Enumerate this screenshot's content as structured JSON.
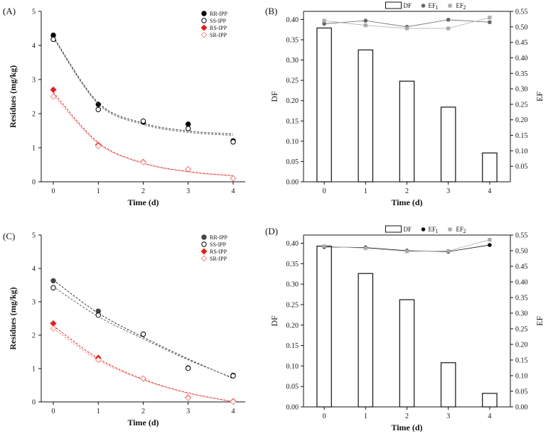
{
  "chart_data": [
    {
      "panel": "(A)",
      "type": "scatter",
      "xlabel": "Time (d)",
      "ylabel": "Residues (mg/kg)",
      "xlim": [
        0,
        4
      ],
      "ylim": [
        0,
        5
      ],
      "xticks": [
        "0",
        "1",
        "2",
        "3",
        "4"
      ],
      "yticks": [
        "0",
        "1",
        "2",
        "3",
        "4",
        "5"
      ],
      "legend_position": "top-right",
      "series": [
        {
          "name": "RR-IPP",
          "color": "#000000",
          "marker": "filled-circle",
          "x": [
            0,
            1,
            2,
            3,
            4
          ],
          "y": [
            4.3,
            2.27,
            1.75,
            1.69,
            1.2
          ],
          "fit": [
            4.26,
            2.32,
            1.72,
            1.49,
            1.4
          ],
          "fit_color": "#333333"
        },
        {
          "name": "SS-IPP",
          "color": "#000000",
          "marker": "open-circle",
          "x": [
            0,
            1,
            2,
            3,
            4
          ],
          "y": [
            4.18,
            2.12,
            1.78,
            1.56,
            1.17
          ],
          "fit": [
            4.22,
            2.28,
            1.68,
            1.45,
            1.36
          ],
          "fit_color": "#666666"
        },
        {
          "name": "RS-IPP",
          "color": "#e11d1d",
          "marker": "filled-diamond",
          "x": [
            0,
            1,
            2,
            3,
            4
          ],
          "y": [
            2.7,
            1.08,
            0.58,
            0.37,
            0.1
          ],
          "fit": [
            2.62,
            1.15,
            0.55,
            0.3,
            0.18
          ],
          "fit_color": "#e11d1d"
        },
        {
          "name": "SR-IPP",
          "color": "#f28a8a",
          "marker": "open-diamond",
          "x": [
            0,
            1,
            2,
            3,
            4
          ],
          "y": [
            2.5,
            1.05,
            0.57,
            0.37,
            0.1
          ],
          "fit": [
            2.55,
            1.12,
            0.54,
            0.29,
            0.17
          ],
          "fit_color": "#f28a8a"
        }
      ]
    },
    {
      "panel": "(B)",
      "type": "bar",
      "xlabel": "Time (d)",
      "ylabel": "DF",
      "y2label": "EF",
      "categories": [
        "0",
        "1",
        "2",
        "3",
        "4"
      ],
      "ylim": [
        0,
        0.42
      ],
      "y2lim": [
        0,
        0.55
      ],
      "yticks": [
        "0.00",
        "0.05",
        "0.10",
        "0.15",
        "0.20",
        "0.25",
        "0.30",
        "0.35",
        "0.40"
      ],
      "y2ticks": [
        "0.05",
        "0.10",
        "0.15",
        "0.20",
        "0.25",
        "0.30",
        "0.35",
        "0.40",
        "0.45",
        "0.50",
        "0.55"
      ],
      "legend": [
        "DF",
        "EF",
        "EF"
      ],
      "legend_subscripts": [
        "",
        "1",
        "2"
      ],
      "legend_position": "top",
      "bars": [
        0.379,
        0.325,
        0.248,
        0.184,
        0.071
      ],
      "series": [
        {
          "name": "EF1",
          "color": "#666666",
          "values": [
            0.51,
            0.52,
            0.5,
            0.523,
            0.515
          ]
        },
        {
          "name": "EF2",
          "color": "#aaaaaa",
          "values": [
            0.52,
            0.505,
            0.495,
            0.495,
            0.53
          ]
        }
      ]
    },
    {
      "panel": "(C)",
      "type": "scatter",
      "xlabel": "Time (d)",
      "ylabel": "Residues (mg/kg)",
      "xlim": [
        0,
        4
      ],
      "ylim": [
        0,
        5
      ],
      "xticks": [
        "0",
        "1",
        "2",
        "3",
        "4"
      ],
      "yticks": [
        "0",
        "1",
        "2",
        "3",
        "4",
        "5"
      ],
      "legend_position": "top-right",
      "series": [
        {
          "name": "RR-IPP",
          "color": "#444444",
          "marker": "filled-circle",
          "x": [
            0,
            1,
            2,
            3,
            4
          ],
          "y": [
            3.63,
            2.72,
            2.03,
            1.02,
            0.8
          ],
          "fit": [
            3.65,
            2.66,
            1.94,
            1.29,
            0.7
          ],
          "fit_color": "#333333"
        },
        {
          "name": "SS-IPP",
          "color": "#000000",
          "marker": "open-circle",
          "x": [
            0,
            1,
            2,
            3,
            4
          ],
          "y": [
            3.42,
            2.6,
            2.03,
            1.01,
            0.78
          ],
          "fit": [
            3.45,
            2.56,
            1.89,
            1.26,
            0.72
          ],
          "fit_color": "#666666"
        },
        {
          "name": "RS-IPP",
          "color": "#e11d1d",
          "marker": "filled-diamond",
          "x": [
            0,
            1,
            2,
            3,
            4
          ],
          "y": [
            2.35,
            1.32,
            0.7,
            0.13,
            0.02
          ],
          "fit": [
            2.28,
            1.3,
            0.68,
            0.27,
            0.01
          ],
          "fit_color": "#e11d1d"
        },
        {
          "name": "SR-IPP",
          "color": "#f28a8a",
          "marker": "open-diamond",
          "x": [
            0,
            1,
            2,
            3,
            4
          ],
          "y": [
            2.2,
            1.26,
            0.7,
            0.12,
            0.01
          ],
          "fit": [
            2.2,
            1.25,
            0.66,
            0.26,
            0.0
          ],
          "fit_color": "#f28a8a"
        }
      ]
    },
    {
      "panel": "(D)",
      "type": "bar",
      "xlabel": "Time (d)",
      "ylabel": "DF",
      "y2label": "EF",
      "categories": [
        "0",
        "1",
        "2",
        "3",
        "4"
      ],
      "ylim": [
        0,
        0.42
      ],
      "y2lim": [
        0,
        0.55
      ],
      "yticks": [
        "0.00",
        "0.05",
        "0.10",
        "0.15",
        "0.20",
        "0.25",
        "0.30",
        "0.35",
        "0.40"
      ],
      "y2ticks": [
        "0.00",
        "0.05",
        "0.10",
        "0.15",
        "0.20",
        "0.25",
        "0.30",
        "0.35",
        "0.40",
        "0.45",
        "0.50",
        "0.55"
      ],
      "legend": [
        "DF",
        "EF",
        "EF"
      ],
      "legend_subscripts": [
        "",
        "1",
        "2"
      ],
      "legend_position": "top",
      "bars": [
        0.393,
        0.326,
        0.262,
        0.108,
        0.033
      ],
      "series": [
        {
          "name": "EF1",
          "color": "#111111",
          "values": [
            0.512,
            0.51,
            0.5,
            0.497,
            0.518
          ]
        },
        {
          "name": "EF2",
          "color": "#aaaaaa",
          "values": [
            0.514,
            0.508,
            0.498,
            0.499,
            0.535
          ]
        }
      ]
    }
  ]
}
